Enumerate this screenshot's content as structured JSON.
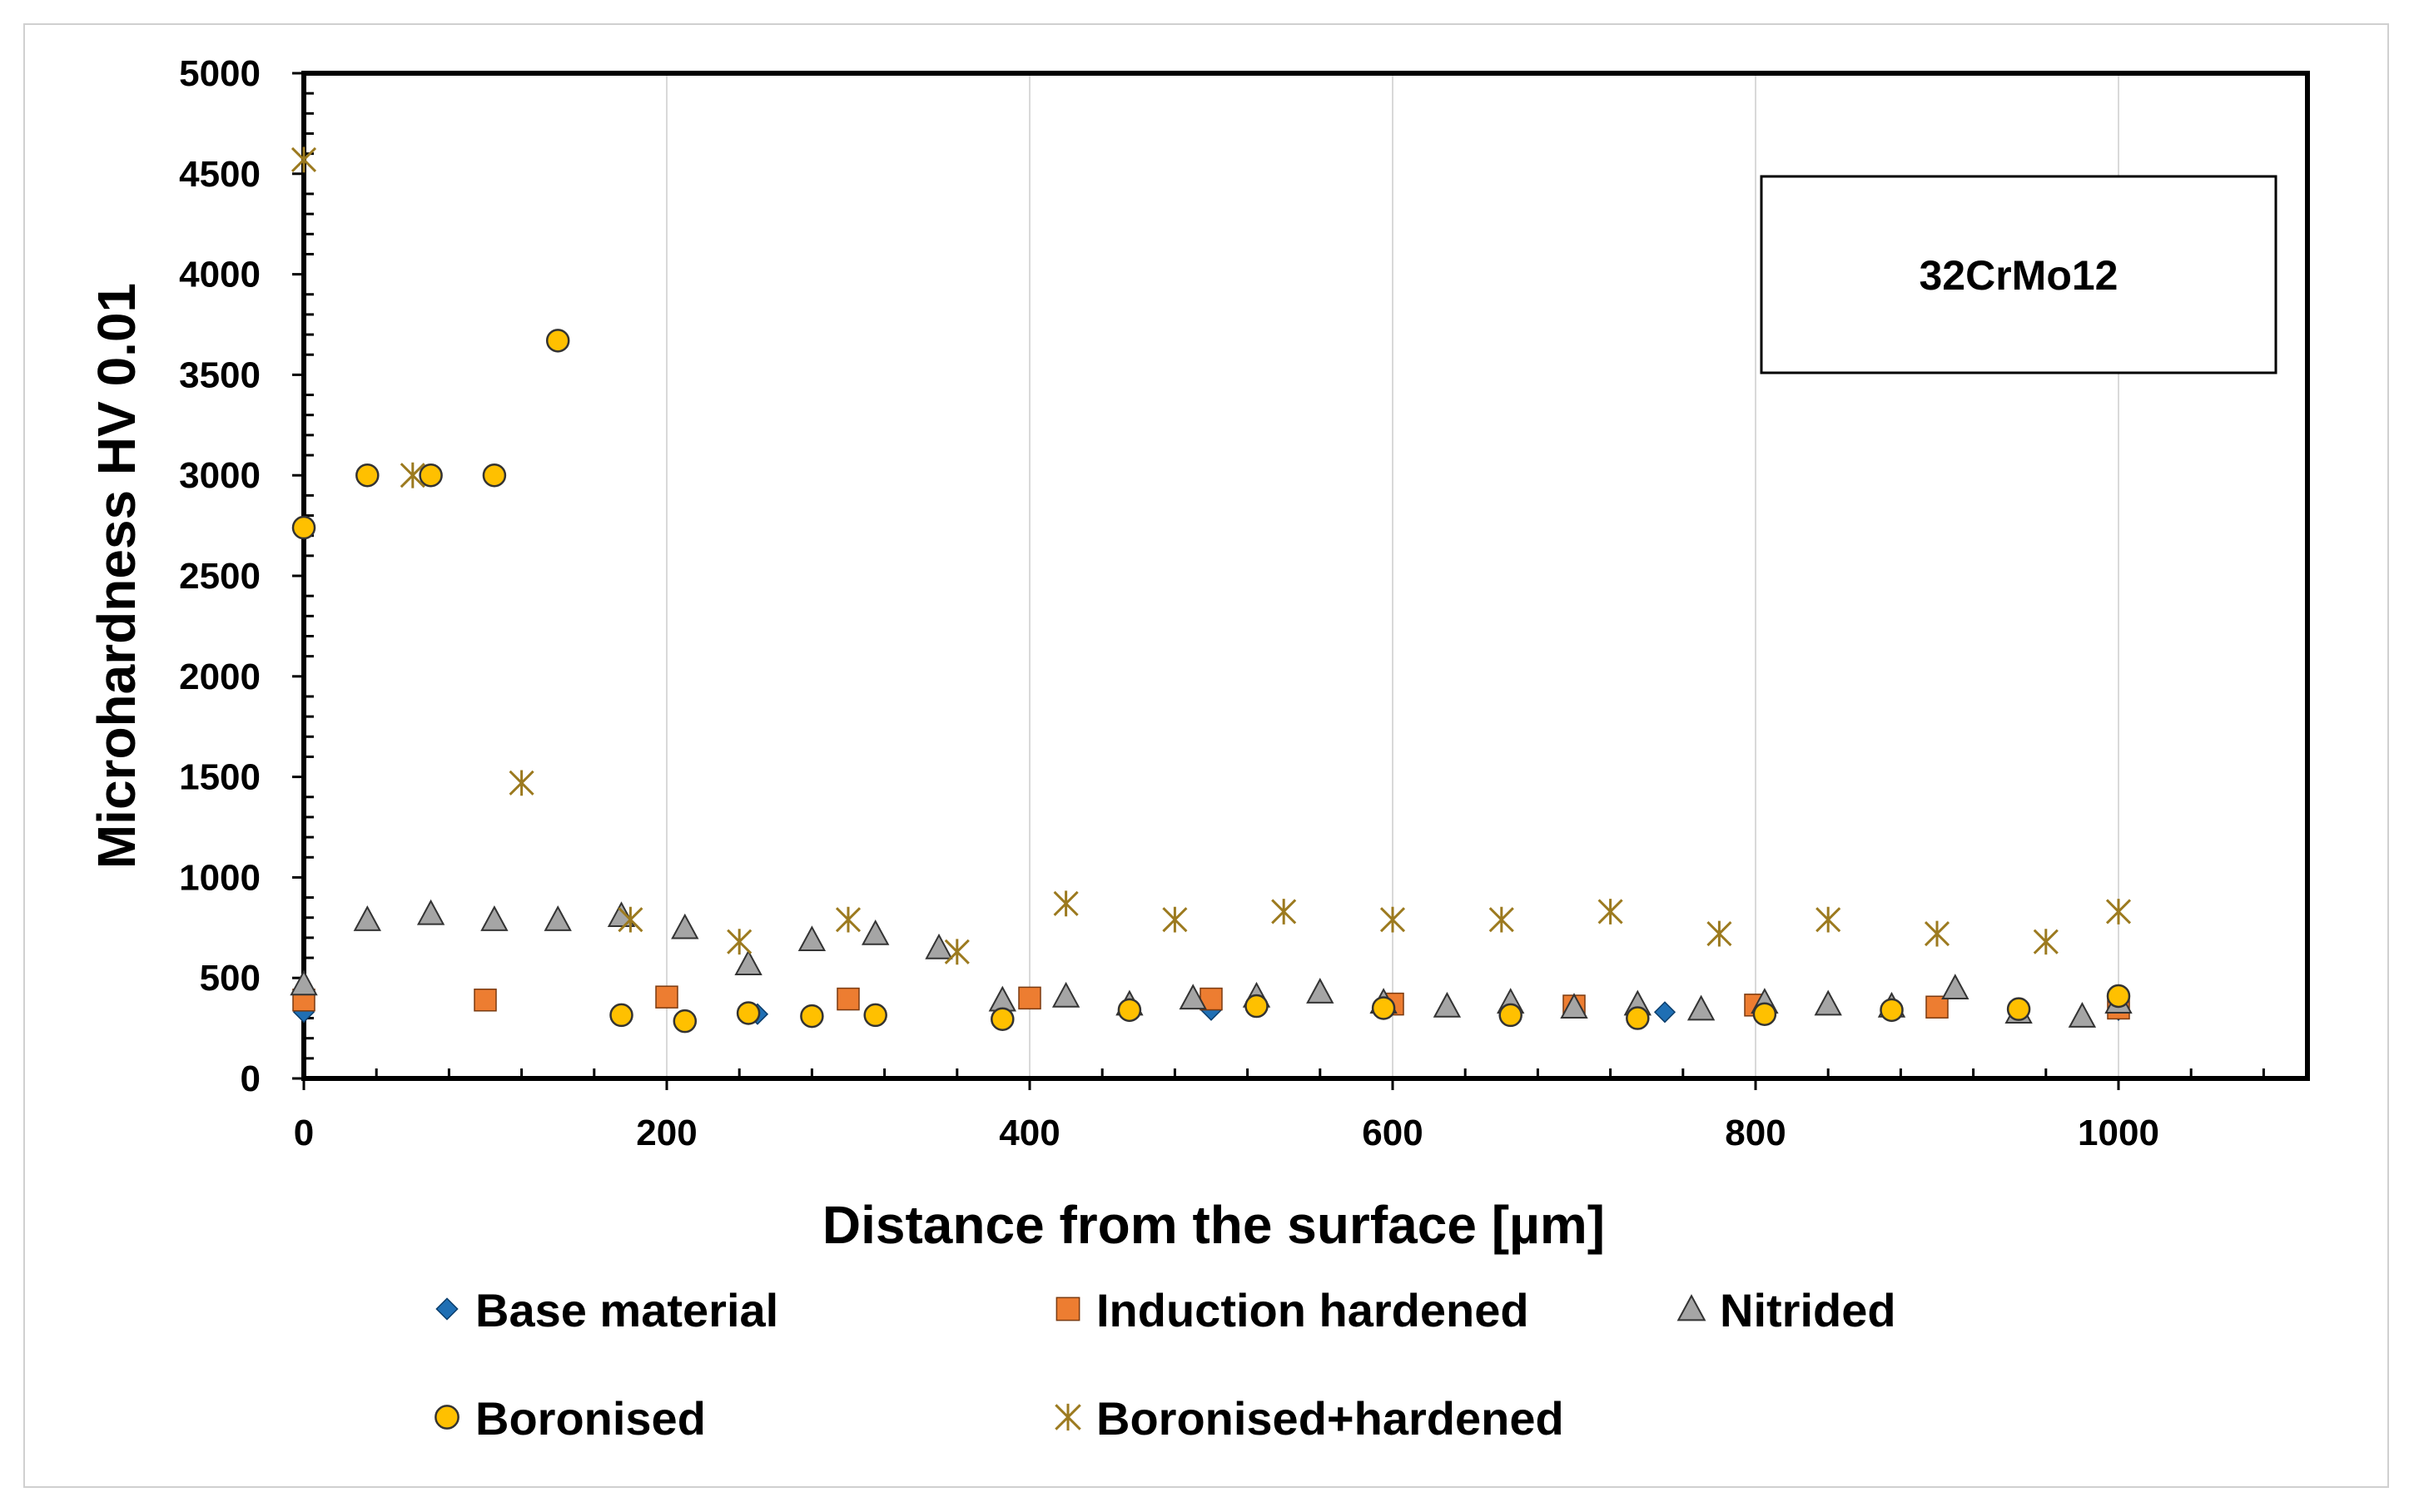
{
  "chart_data": {
    "type": "scatter",
    "title": "",
    "annotation": "32CrMo12",
    "xlabel": "Distance from the surface [µm]",
    "ylabel": "Microhardness HV 0.01",
    "xlim": [
      0,
      1100
    ],
    "ylim": [
      0,
      5000
    ],
    "xticks": [
      0,
      200,
      400,
      600,
      800,
      1000
    ],
    "yticks": [
      0,
      500,
      1000,
      1500,
      2000,
      2500,
      3000,
      3500,
      4000,
      4500,
      5000
    ],
    "grid": "vertical",
    "legend_position": "bottom",
    "series": [
      {
        "name": "Base material",
        "marker": "diamond",
        "color": "#1f6fb4",
        "points": [
          [
            0,
            330
          ],
          [
            250,
            320
          ],
          [
            500,
            340
          ],
          [
            750,
            330
          ],
          [
            945,
            330
          ],
          [
            1000,
            340
          ]
        ]
      },
      {
        "name": "Induction hardened",
        "marker": "square",
        "color": "#ed7d31",
        "points": [
          [
            0,
            390
          ],
          [
            100,
            390
          ],
          [
            200,
            405
          ],
          [
            300,
            395
          ],
          [
            400,
            400
          ],
          [
            500,
            395
          ],
          [
            600,
            370
          ],
          [
            700,
            360
          ],
          [
            800,
            365
          ],
          [
            900,
            355
          ],
          [
            1000,
            350
          ]
        ]
      },
      {
        "name": "Nitrided",
        "marker": "triangle",
        "color": "#a5a5a5",
        "points": [
          [
            0,
            470
          ],
          [
            35,
            790
          ],
          [
            70,
            820
          ],
          [
            105,
            790
          ],
          [
            140,
            790
          ],
          [
            175,
            810
          ],
          [
            210,
            750
          ],
          [
            245,
            570
          ],
          [
            280,
            690
          ],
          [
            315,
            720
          ],
          [
            350,
            650
          ],
          [
            385,
            390
          ],
          [
            420,
            410
          ],
          [
            455,
            370
          ],
          [
            490,
            400
          ],
          [
            525,
            410
          ],
          [
            560,
            430
          ],
          [
            595,
            380
          ],
          [
            630,
            360
          ],
          [
            665,
            380
          ],
          [
            700,
            355
          ],
          [
            735,
            370
          ],
          [
            770,
            345
          ],
          [
            805,
            380
          ],
          [
            840,
            370
          ],
          [
            875,
            360
          ],
          [
            910,
            450
          ],
          [
            945,
            330
          ],
          [
            980,
            310
          ],
          [
            1000,
            380
          ]
        ]
      },
      {
        "name": "Boronised",
        "marker": "circle",
        "color": "#ffc000",
        "points": [
          [
            0,
            2740
          ],
          [
            35,
            3000
          ],
          [
            70,
            3000
          ],
          [
            105,
            3000
          ],
          [
            140,
            3670
          ],
          [
            175,
            315
          ],
          [
            210,
            285
          ],
          [
            245,
            325
          ],
          [
            280,
            310
          ],
          [
            315,
            315
          ],
          [
            385,
            295
          ],
          [
            455,
            340
          ],
          [
            525,
            360
          ],
          [
            595,
            350
          ],
          [
            665,
            315
          ],
          [
            735,
            300
          ],
          [
            805,
            320
          ],
          [
            875,
            340
          ],
          [
            945,
            345
          ],
          [
            1000,
            410
          ]
        ]
      },
      {
        "name": "Boronised+hardened",
        "marker": "asterisk",
        "color": "#9c7a1f",
        "points": [
          [
            0,
            4570
          ],
          [
            60,
            3000
          ],
          [
            120,
            1470
          ],
          [
            180,
            790
          ],
          [
            240,
            680
          ],
          [
            300,
            790
          ],
          [
            360,
            630
          ],
          [
            420,
            870
          ],
          [
            480,
            790
          ],
          [
            540,
            830
          ],
          [
            600,
            790
          ],
          [
            660,
            790
          ],
          [
            720,
            830
          ],
          [
            780,
            720
          ],
          [
            840,
            790
          ],
          [
            900,
            720
          ],
          [
            960,
            680
          ],
          [
            1000,
            830
          ]
        ]
      }
    ]
  }
}
